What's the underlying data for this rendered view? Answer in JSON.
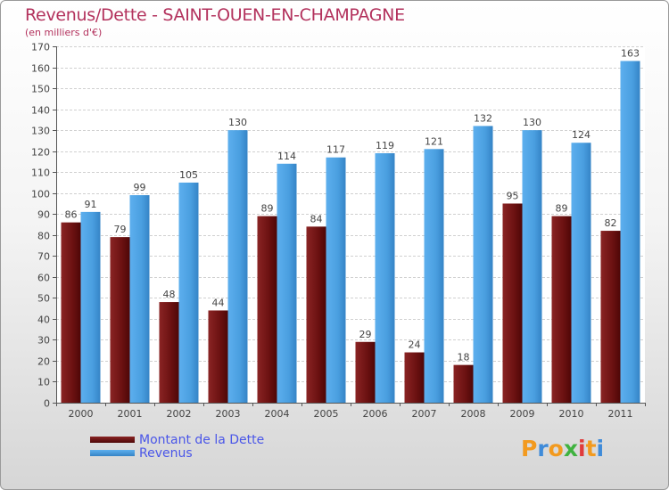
{
  "title": "Revenus/Dette - SAINT-OUEN-EN-CHAMPAGNE",
  "subtitle": "(en milliers d'€)",
  "logo": {
    "text": "Proxiti"
  },
  "colors": {
    "dette": "#6e1414",
    "revenus": "#4a9fe0",
    "title": "#b3325d",
    "legend_text": "#4a56e8"
  },
  "chart_data": {
    "type": "bar",
    "title": "Revenus/Dette - SAINT-OUEN-EN-CHAMPAGNE",
    "ylabel": "(en milliers d'€)",
    "xlabel": "",
    "ylim": [
      0,
      170
    ],
    "ytick_step": 10,
    "grid": true,
    "legend_position": "bottom-left",
    "categories": [
      "2000",
      "2001",
      "2002",
      "2003",
      "2004",
      "2005",
      "2006",
      "2007",
      "2008",
      "2009",
      "2010",
      "2011"
    ],
    "series": [
      {
        "name": "Montant de la Dette",
        "values": [
          86,
          79,
          48,
          44,
          89,
          84,
          29,
          24,
          18,
          95,
          89,
          82
        ]
      },
      {
        "name": "Revenus",
        "values": [
          91,
          99,
          105,
          130,
          114,
          117,
          119,
          121,
          132,
          130,
          124,
          163
        ]
      }
    ]
  }
}
